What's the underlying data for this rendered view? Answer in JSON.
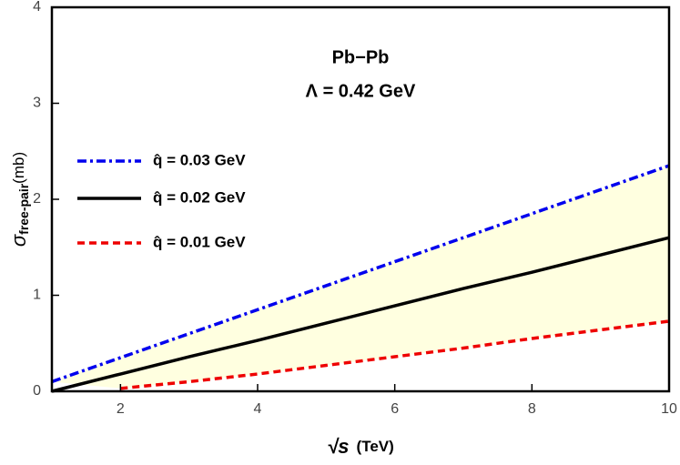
{
  "chart_data": {
    "type": "line",
    "annotations": [
      "Pb−Pb",
      "Λ = 0.42 GeV"
    ],
    "x_label": "√s",
    "x_label_unit": "(TeV)",
    "y_label": "σ",
    "y_label_sub": "free-pair",
    "y_label_unit": "(mb)",
    "x": [
      1,
      2,
      3,
      4,
      5,
      6,
      7,
      8,
      9,
      10
    ],
    "series": [
      {
        "name": "q̂ = 0.03 GeV",
        "color": "#0000ee",
        "style": "dashdot",
        "values": [
          0.1,
          0.35,
          0.6,
          0.85,
          1.1,
          1.35,
          1.6,
          1.85,
          2.1,
          2.35
        ]
      },
      {
        "name": "q̂ = 0.02 GeV",
        "color": "#000000",
        "style": "solid",
        "values": [
          0,
          0.18,
          0.36,
          0.53,
          0.71,
          0.89,
          1.07,
          1.24,
          1.42,
          1.6
        ]
      },
      {
        "name": "q̂ = 0.01 GeV",
        "color": "#ee0000",
        "style": "dashed",
        "values": [
          null,
          0.03,
          0.1,
          0.18,
          0.27,
          0.36,
          0.45,
          0.55,
          0.64,
          0.73
        ]
      }
    ],
    "band_color": "#ffffe0",
    "xlim": [
      1,
      10
    ],
    "xticks": [
      2,
      4,
      6,
      8,
      10
    ],
    "ylim": [
      0,
      4
    ],
    "yticks": [
      0,
      1,
      2,
      3,
      4
    ]
  }
}
